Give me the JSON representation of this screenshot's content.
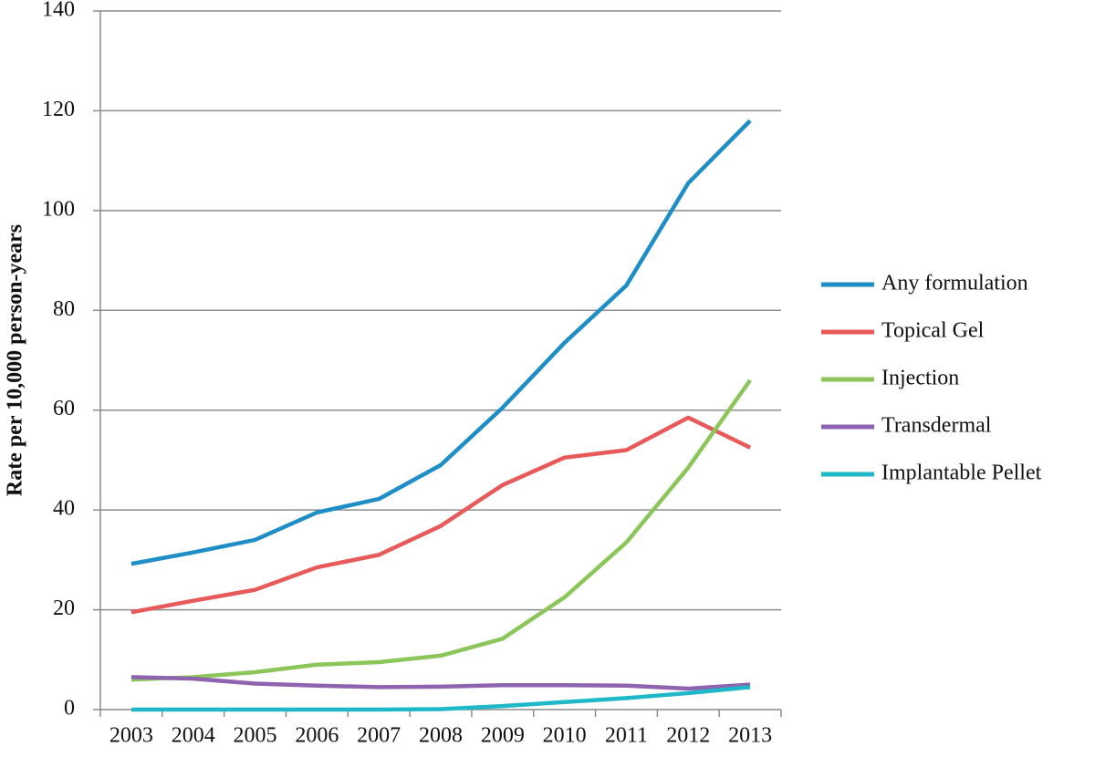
{
  "chart_data": {
    "type": "line",
    "y_label": "Rate per 10,000 person-years",
    "categories": [
      "2003",
      "2004",
      "2005",
      "2006",
      "2007",
      "2008",
      "2009",
      "2010",
      "2011",
      "2012",
      "2013"
    ],
    "series": [
      {
        "name": "Any formulation",
        "color": "#1f8ec6",
        "values": [
          29.2,
          31.5,
          34,
          39.5,
          42.2,
          49,
          60.5,
          73.5,
          85,
          105.5,
          118
        ]
      },
      {
        "name": "Topical Gel",
        "color": "#e85a5a",
        "values": [
          19.5,
          21.8,
          24,
          28.5,
          31,
          36.8,
          45,
          50.5,
          52,
          58.5,
          52.5
        ]
      },
      {
        "name": "Injection",
        "color": "#8cc65a",
        "values": [
          6,
          6.5,
          7.5,
          9,
          9.5,
          10.8,
          14.2,
          22.5,
          33.5,
          48.5,
          66
        ]
      },
      {
        "name": "Transdermal",
        "color": "#8e63b0",
        "values": [
          6.5,
          6.2,
          5.2,
          4.8,
          4.5,
          4.6,
          4.9,
          4.9,
          4.8,
          4.2,
          5
        ]
      },
      {
        "name": "Implantable Pellet",
        "color": "#1fb8c8",
        "values": [
          0,
          0,
          0,
          0,
          0,
          0.1,
          0.7,
          1.5,
          2.3,
          3.3,
          4.5
        ]
      }
    ],
    "ylim": [
      0,
      140
    ],
    "yticks": [
      0,
      20,
      40,
      60,
      80,
      100,
      120,
      140
    ],
    "grid": true,
    "legend": "right"
  }
}
